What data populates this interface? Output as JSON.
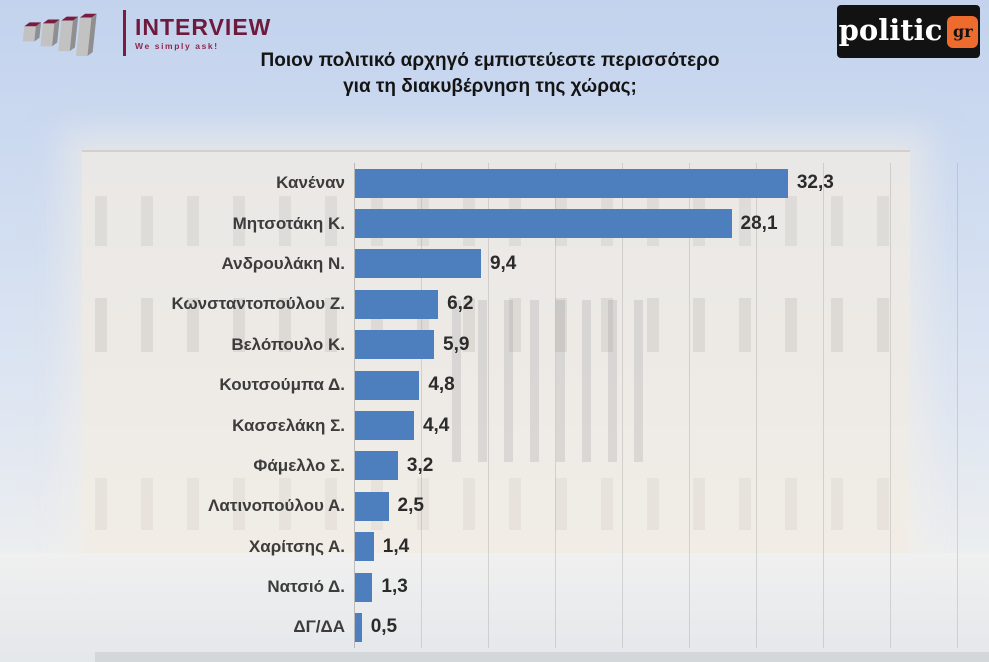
{
  "header": {
    "interview_logo": {
      "name": "INTERVIEW",
      "tagline": "We simply ask!"
    },
    "politic_logo": {
      "text": "politic",
      "badge": "gr"
    },
    "title_line1": "Ποιον πολιτικό αρχηγό εμπιστεύεστε περισσότερο",
    "title_line2": "για τη διακυβέρνηση της χώρας;"
  },
  "chart_data": {
    "type": "bar",
    "orientation": "horizontal",
    "title": "Ποιον πολιτικό αρχηγό εμπιστεύεστε περισσότερο για τη διακυβέρνηση της χώρας;",
    "categories": [
      "Κανέναν",
      "Μητσοτάκη Κ.",
      "Ανδρουλάκη Ν.",
      "Κωνσταντοπούλου Ζ.",
      "Βελόπουλο Κ.",
      "Κουτσούμπα Δ.",
      "Κασσελάκη Σ.",
      "Φάμελλο Σ.",
      "Λατινοπούλου Α.",
      "Χαρίτσης Α.",
      "Νατσιό Δ.",
      "ΔΓ/ΔΑ"
    ],
    "values": [
      32.3,
      28.1,
      9.4,
      6.2,
      5.9,
      4.8,
      4.4,
      3.2,
      2.5,
      1.4,
      1.3,
      0.5
    ],
    "value_labels": [
      "32,3",
      "28,1",
      "9,4",
      "6,2",
      "5,9",
      "4,8",
      "4,4",
      "3,2",
      "2,5",
      "1,4",
      "1,3",
      "0,5"
    ],
    "xlim": [
      0,
      45
    ],
    "gridline_step": 5,
    "grid": "vertical-faint",
    "legend": "none",
    "bar_color": "#4d7fbf",
    "category_color": "#3c3c3c",
    "value_color": "#2b2b2b"
  },
  "background": {
    "scene": "faded-hellenic-parliament-photo",
    "sky_color": "#c3d3ed",
    "building_color": "#f2ece3",
    "ground_color": "#eceef0"
  }
}
